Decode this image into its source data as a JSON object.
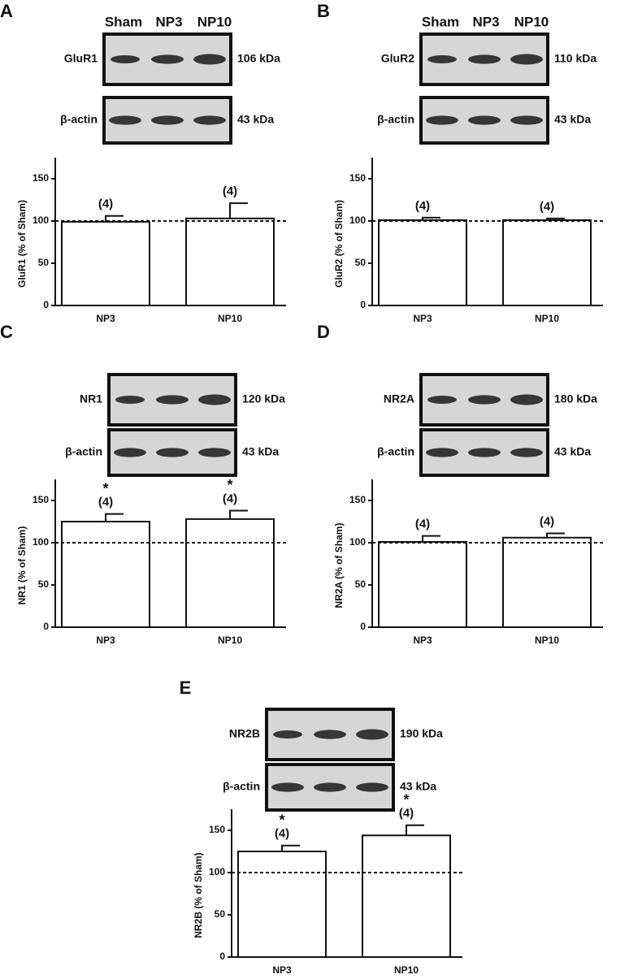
{
  "chart_data": [
    {
      "panel": "A",
      "type": "bar",
      "lanes": [
        "Sham",
        "NP3",
        "NP10"
      ],
      "blots": [
        {
          "label": "GluR1",
          "size": "106 kDa"
        },
        {
          "label": "β-actin",
          "size": "43 kDa"
        }
      ],
      "ylabel": "GluR1 (% of Sham)",
      "categories": [
        "NP3",
        "NP10"
      ],
      "values": [
        99,
        103
      ],
      "errors": [
        7,
        18
      ],
      "n_labels": [
        "(4)",
        "(4)"
      ],
      "reference_line": 100,
      "ylim": [
        0,
        175
      ],
      "yticks": [
        0,
        50,
        100,
        150
      ],
      "color": "#ffffff"
    },
    {
      "panel": "B",
      "type": "bar",
      "lanes": [
        "Sham",
        "NP3",
        "NP10"
      ],
      "blots": [
        {
          "label": "GluR2",
          "size": "110 kDa"
        },
        {
          "label": "β-actin",
          "size": "43 kDa"
        }
      ],
      "ylabel": "GluR2 (% of Sham)",
      "categories": [
        "NP3",
        "NP10"
      ],
      "values": [
        101,
        101
      ],
      "errors": [
        3,
        2
      ],
      "n_labels": [
        "(4)",
        "(4)"
      ],
      "reference_line": 100,
      "ylim": [
        0,
        175
      ],
      "yticks": [
        0,
        50,
        100,
        150
      ],
      "color": "#ffffff"
    },
    {
      "panel": "C",
      "type": "bar",
      "blots": [
        {
          "label": "NR1",
          "size": "120 kDa"
        },
        {
          "label": "β-actin",
          "size": "43 kDa"
        }
      ],
      "ylabel": "NR1 (% of Sham)",
      "categories": [
        "NP3",
        "NP10"
      ],
      "values": [
        125,
        128
      ],
      "errors": [
        9,
        10
      ],
      "n_labels": [
        "(4)",
        "(4)"
      ],
      "significance": [
        "*",
        "*"
      ],
      "reference_line": 100,
      "ylim": [
        0,
        175
      ],
      "yticks": [
        0,
        50,
        100,
        150
      ],
      "color": "#ffffff"
    },
    {
      "panel": "D",
      "type": "bar",
      "blots": [
        {
          "label": "NR2A",
          "size": "180 kDa"
        },
        {
          "label": "β-actin",
          "size": "43 kDa"
        }
      ],
      "ylabel": "NR2A (% of Sham)",
      "categories": [
        "NP3",
        "NP10"
      ],
      "values": [
        101,
        106
      ],
      "errors": [
        7,
        5
      ],
      "n_labels": [
        "(4)",
        "(4)"
      ],
      "reference_line": 100,
      "ylim": [
        0,
        175
      ],
      "yticks": [
        0,
        50,
        100,
        150
      ],
      "color": "#ffffff"
    },
    {
      "panel": "E",
      "type": "bar",
      "blots": [
        {
          "label": "NR2B",
          "size": "190 kDa"
        },
        {
          "label": "β-actin",
          "size": "43 kDa"
        }
      ],
      "ylabel": "NR2B (% of Sham)",
      "categories": [
        "NP3",
        "NP10"
      ],
      "values": [
        125,
        144
      ],
      "errors": [
        7,
        12
      ],
      "n_labels": [
        "(4)",
        "(4)"
      ],
      "significance": [
        "*",
        "*"
      ],
      "reference_line": 100,
      "ylim": [
        0,
        175
      ],
      "yticks": [
        0,
        50,
        100,
        150
      ],
      "color": "#ffffff"
    }
  ]
}
